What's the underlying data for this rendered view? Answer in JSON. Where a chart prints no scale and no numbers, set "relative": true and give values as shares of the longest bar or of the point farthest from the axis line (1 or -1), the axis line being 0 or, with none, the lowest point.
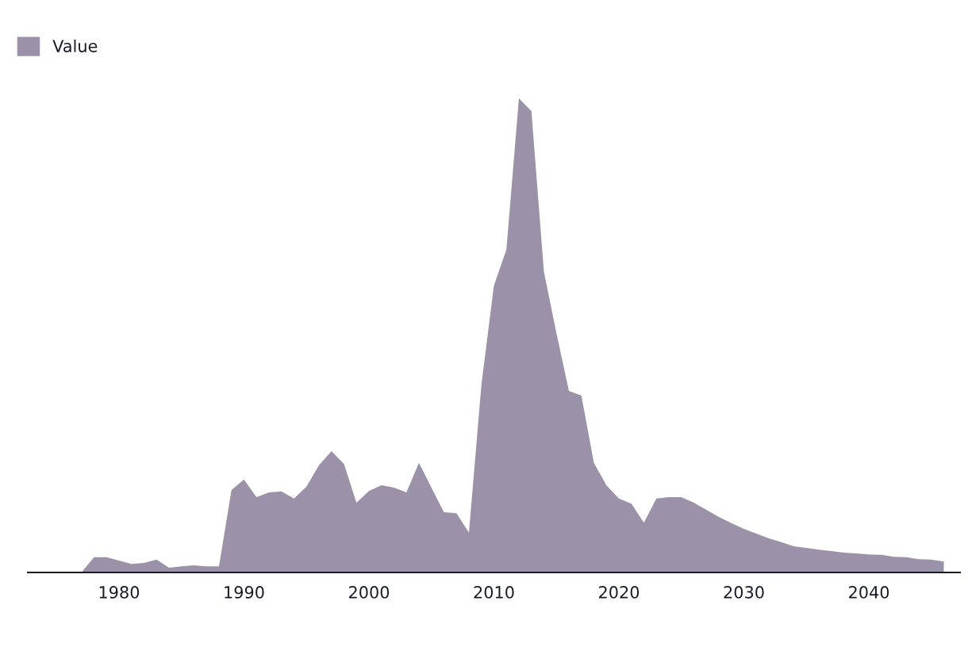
{
  "chart_data": {
    "type": "area",
    "relative": true,
    "legend": "top left",
    "grid": false,
    "x": [
      1977,
      1978,
      1979,
      1980,
      1981,
      1982,
      1983,
      1984,
      1985,
      1986,
      1987,
      1988,
      1989,
      1990,
      1991,
      1992,
      1993,
      1994,
      1995,
      1996,
      1997,
      1998,
      1999,
      2000,
      2001,
      2002,
      2003,
      2004,
      2005,
      2006,
      2007,
      2008,
      2009,
      2010,
      2011,
      2012,
      2013,
      2014,
      2015,
      2016,
      2017,
      2018,
      2019,
      2020,
      2021,
      2022,
      2023,
      2024,
      2025,
      2026,
      2027,
      2028,
      2029,
      2030,
      2031,
      2032,
      2033,
      2034,
      2035,
      2036,
      2037,
      2038,
      2039,
      2040,
      2041,
      2042,
      2043,
      2044,
      2045,
      2046
    ],
    "xlim": [
      1972.7,
      2047.3
    ],
    "xticks": [
      1980,
      1990,
      2000,
      2010,
      2020,
      2030,
      2040
    ],
    "series": [
      {
        "name": "Value",
        "color": "#9b92aa",
        "values": [
          0,
          0.032,
          0.032,
          0.025,
          0.018,
          0.02,
          0.027,
          0.01,
          0.013,
          0.015,
          0.013,
          0.013,
          0.174,
          0.196,
          0.159,
          0.169,
          0.171,
          0.156,
          0.181,
          0.226,
          0.256,
          0.229,
          0.147,
          0.172,
          0.184,
          0.179,
          0.169,
          0.231,
          0.179,
          0.127,
          0.125,
          0.084,
          0.396,
          0.605,
          0.681,
          1,
          0.973,
          0.634,
          0.505,
          0.383,
          0.373,
          0.231,
          0.184,
          0.156,
          0.145,
          0.105,
          0.156,
          0.159,
          0.159,
          0.147,
          0.132,
          0.117,
          0.104,
          0.092,
          0.082,
          0.072,
          0.064,
          0.055,
          0.052,
          0.048,
          0.045,
          0.042,
          0.04,
          0.038,
          0.037,
          0.033,
          0.032,
          0.028,
          0.027,
          0.023
        ]
      }
    ]
  }
}
